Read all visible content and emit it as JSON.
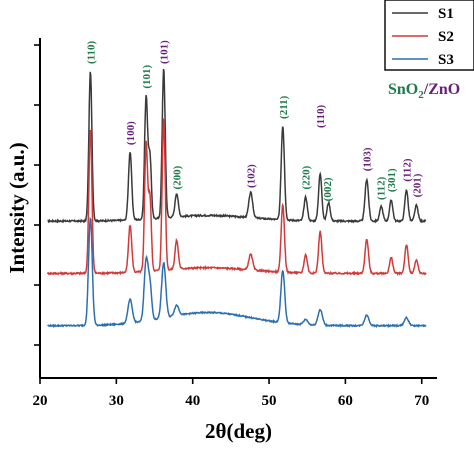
{
  "chart_data": {
    "type": "line",
    "xlabel": "2θ(deg)",
    "ylabel": "Intensity (a.u.)",
    "xlim": [
      20,
      72
    ],
    "xticks": [
      "20",
      "30",
      "40",
      "50",
      "60",
      "70"
    ],
    "yticks_count": 6,
    "show_y_tick_labels": false,
    "grid": false,
    "legend_position": "top-right",
    "material_label": {
      "prefix": "SnO",
      "sub": "2",
      "sep": "/",
      "suffix": "ZnO"
    },
    "colors": {
      "S1": "#3a3a3a",
      "S2": "#d23a3a",
      "S3": "#2c6fb0",
      "sno2": "#1f7a4c",
      "zno": "#6a1f7a"
    },
    "series": [
      {
        "name": "S1",
        "color": "#3a3a3a",
        "baseline": 1.0,
        "noise": 0.015,
        "peaks": [
          {
            "x": 26.6,
            "h": 2.85,
            "w": 0.28
          },
          {
            "x": 31.8,
            "h": 1.3,
            "w": 0.3
          },
          {
            "x": 33.9,
            "h": 2.35,
            "w": 0.28
          },
          {
            "x": 34.4,
            "h": 1.2,
            "w": 0.26
          },
          {
            "x": 36.2,
            "h": 2.85,
            "w": 0.28
          },
          {
            "x": 37.9,
            "h": 0.45,
            "w": 0.3
          },
          {
            "x": 47.6,
            "h": 0.48,
            "w": 0.35
          },
          {
            "x": 51.8,
            "h": 1.8,
            "w": 0.3
          },
          {
            "x": 54.8,
            "h": 0.45,
            "w": 0.3
          },
          {
            "x": 56.7,
            "h": 0.9,
            "w": 0.3
          },
          {
            "x": 57.8,
            "h": 0.35,
            "w": 0.3
          },
          {
            "x": 62.8,
            "h": 0.8,
            "w": 0.32
          },
          {
            "x": 64.7,
            "h": 0.28,
            "w": 0.3
          },
          {
            "x": 66.0,
            "h": 0.4,
            "w": 0.3
          },
          {
            "x": 68.0,
            "h": 0.6,
            "w": 0.3
          },
          {
            "x": 69.3,
            "h": 0.3,
            "w": 0.3
          }
        ]
      },
      {
        "name": "S2",
        "color": "#d23a3a",
        "baseline": 0.0,
        "noise": 0.015,
        "peaks": [
          {
            "x": 26.6,
            "h": 2.75,
            "w": 0.28
          },
          {
            "x": 31.8,
            "h": 0.9,
            "w": 0.3
          },
          {
            "x": 33.9,
            "h": 2.45,
            "w": 0.28
          },
          {
            "x": 34.4,
            "h": 1.4,
            "w": 0.26
          },
          {
            "x": 36.2,
            "h": 2.9,
            "w": 0.28
          },
          {
            "x": 37.9,
            "h": 0.55,
            "w": 0.3
          },
          {
            "x": 47.6,
            "h": 0.3,
            "w": 0.35
          },
          {
            "x": 51.8,
            "h": 1.3,
            "w": 0.3
          },
          {
            "x": 54.8,
            "h": 0.35,
            "w": 0.3
          },
          {
            "x": 56.7,
            "h": 0.8,
            "w": 0.3
          },
          {
            "x": 62.8,
            "h": 0.65,
            "w": 0.32
          },
          {
            "x": 66.0,
            "h": 0.3,
            "w": 0.3
          },
          {
            "x": 68.0,
            "h": 0.55,
            "w": 0.3
          },
          {
            "x": 69.3,
            "h": 0.25,
            "w": 0.3
          }
        ]
      },
      {
        "name": "S3",
        "color": "#2c6fb0",
        "baseline": -1.0,
        "noise": 0.012,
        "peaks": [
          {
            "x": 26.6,
            "h": 2.05,
            "w": 0.34
          },
          {
            "x": 31.8,
            "h": 0.45,
            "w": 0.4
          },
          {
            "x": 33.9,
            "h": 1.15,
            "w": 0.36
          },
          {
            "x": 34.4,
            "h": 0.65,
            "w": 0.32
          },
          {
            "x": 36.2,
            "h": 1.05,
            "w": 0.38
          },
          {
            "x": 37.9,
            "h": 0.2,
            "w": 0.4
          },
          {
            "x": 51.8,
            "h": 1.0,
            "w": 0.35
          },
          {
            "x": 54.8,
            "h": 0.1,
            "w": 0.4
          },
          {
            "x": 56.7,
            "h": 0.3,
            "w": 0.4
          },
          {
            "x": 62.8,
            "h": 0.2,
            "w": 0.4
          },
          {
            "x": 68.0,
            "h": 0.15,
            "w": 0.4
          }
        ]
      }
    ],
    "annotations": [
      {
        "text": "(110)",
        "x": 26.6,
        "phase": "sno2",
        "rank": 0
      },
      {
        "text": "(100)",
        "x": 31.8,
        "phase": "zno",
        "rank": 0
      },
      {
        "text": "(101)",
        "x": 33.9,
        "phase": "sno2",
        "rank": 0
      },
      {
        "text": "(101)",
        "x": 36.2,
        "phase": "zno",
        "rank": 0
      },
      {
        "text": "(200)",
        "x": 37.9,
        "phase": "sno2",
        "rank": 0
      },
      {
        "text": "(102)",
        "x": 47.6,
        "phase": "zno",
        "rank": 0
      },
      {
        "text": "(211)",
        "x": 51.8,
        "phase": "sno2",
        "rank": 0
      },
      {
        "text": "(220)",
        "x": 54.8,
        "phase": "sno2",
        "rank": 0
      },
      {
        "text": "(002)",
        "x": 57.6,
        "phase": "sno2",
        "rank": 0
      },
      {
        "text": "(110)",
        "x": 56.7,
        "phase": "zno",
        "rank": 1
      },
      {
        "text": "(103)",
        "x": 62.8,
        "phase": "zno",
        "rank": 0
      },
      {
        "text": "(112)",
        "x": 64.6,
        "phase": "sno2",
        "rank": 0
      },
      {
        "text": "(301)",
        "x": 66.0,
        "phase": "sno2",
        "rank": 0
      },
      {
        "text": "(112)",
        "x": 68.0,
        "phase": "zno",
        "rank": 0
      },
      {
        "text": "(201)",
        "x": 69.3,
        "phase": "zno",
        "rank": 0
      }
    ]
  }
}
